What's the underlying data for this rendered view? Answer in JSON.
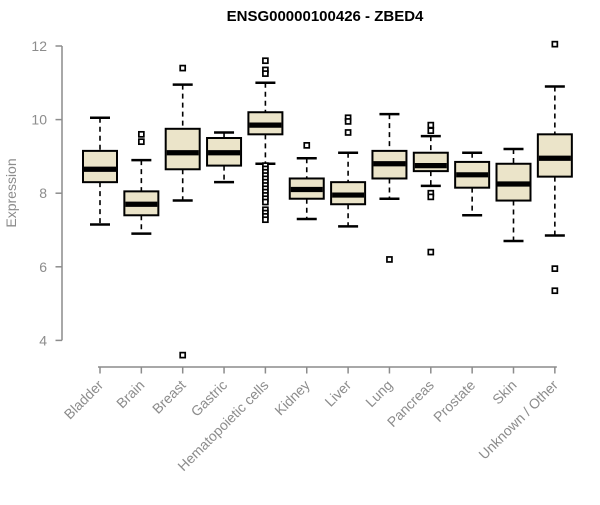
{
  "chart_data": {
    "type": "boxplot",
    "title": "ENSG00000100426 - ZBED4",
    "ylabel": "Expression",
    "xlabel": "",
    "ylim": [
      4,
      12
    ],
    "yticks": [
      4,
      6,
      8,
      10,
      12
    ],
    "grid": false,
    "legend": null,
    "categories": [
      "Bladder",
      "Brain",
      "Breast",
      "Gastric",
      "Hematopoietic cells",
      "Kidney",
      "Liver",
      "Lung",
      "Pancreas",
      "Prostate",
      "Skin",
      "Unknown / Other"
    ],
    "boxes": [
      {
        "category": "Bladder",
        "low": 7.15,
        "q1": 8.3,
        "median": 8.65,
        "q3": 9.15,
        "high": 10.05,
        "outliers": []
      },
      {
        "category": "Brain",
        "low": 6.9,
        "q1": 7.4,
        "median": 7.7,
        "q3": 8.05,
        "high": 8.9,
        "outliers": [
          9.6,
          9.4
        ]
      },
      {
        "category": "Breast",
        "low": 7.8,
        "q1": 8.65,
        "median": 9.1,
        "q3": 9.75,
        "high": 10.95,
        "outliers": [
          11.4,
          3.6
        ]
      },
      {
        "category": "Gastric",
        "low": 8.3,
        "q1": 8.75,
        "median": 9.1,
        "q3": 9.5,
        "high": 9.65,
        "outliers": []
      },
      {
        "category": "Hematopoietic cells",
        "low": 8.8,
        "q1": 9.6,
        "median": 9.85,
        "q3": 10.2,
        "high": 11.0,
        "outliers": [
          11.6,
          11.35,
          11.25,
          8.75,
          8.66,
          8.57,
          8.48,
          8.39,
          8.3,
          8.21,
          8.12,
          8.03,
          7.94,
          7.85,
          7.76,
          7.55,
          7.46,
          7.37,
          7.28
        ]
      },
      {
        "category": "Kidney",
        "low": 7.3,
        "q1": 7.85,
        "median": 8.1,
        "q3": 8.4,
        "high": 8.95,
        "outliers": [
          9.3
        ]
      },
      {
        "category": "Liver",
        "low": 7.1,
        "q1": 7.7,
        "median": 7.95,
        "q3": 8.3,
        "high": 9.1,
        "outliers": [
          10.05,
          9.95,
          9.65
        ]
      },
      {
        "category": "Lung",
        "low": 7.85,
        "q1": 8.4,
        "median": 8.8,
        "q3": 9.15,
        "high": 10.15,
        "outliers": [
          6.2
        ]
      },
      {
        "category": "Pancreas",
        "low": 8.2,
        "q1": 8.6,
        "median": 8.75,
        "q3": 9.1,
        "high": 9.55,
        "outliers": [
          9.85,
          9.7,
          8.0,
          7.9,
          6.4
        ]
      },
      {
        "category": "Prostate",
        "low": 7.4,
        "q1": 8.15,
        "median": 8.5,
        "q3": 8.85,
        "high": 9.1,
        "outliers": []
      },
      {
        "category": "Skin",
        "low": 6.7,
        "q1": 7.8,
        "median": 8.25,
        "q3": 8.8,
        "high": 9.2,
        "outliers": []
      },
      {
        "category": "Unknown / Other",
        "low": 6.85,
        "q1": 8.45,
        "median": 8.95,
        "q3": 9.6,
        "high": 10.9,
        "outliers": [
          12.05,
          5.95,
          5.35
        ]
      }
    ]
  },
  "colors": {
    "box_fill": "#EBE4C9",
    "box_stroke": "#000000",
    "median": "#000000",
    "axis": "#8C8C8C",
    "title": "#000000",
    "background": "#FFFFFF"
  }
}
